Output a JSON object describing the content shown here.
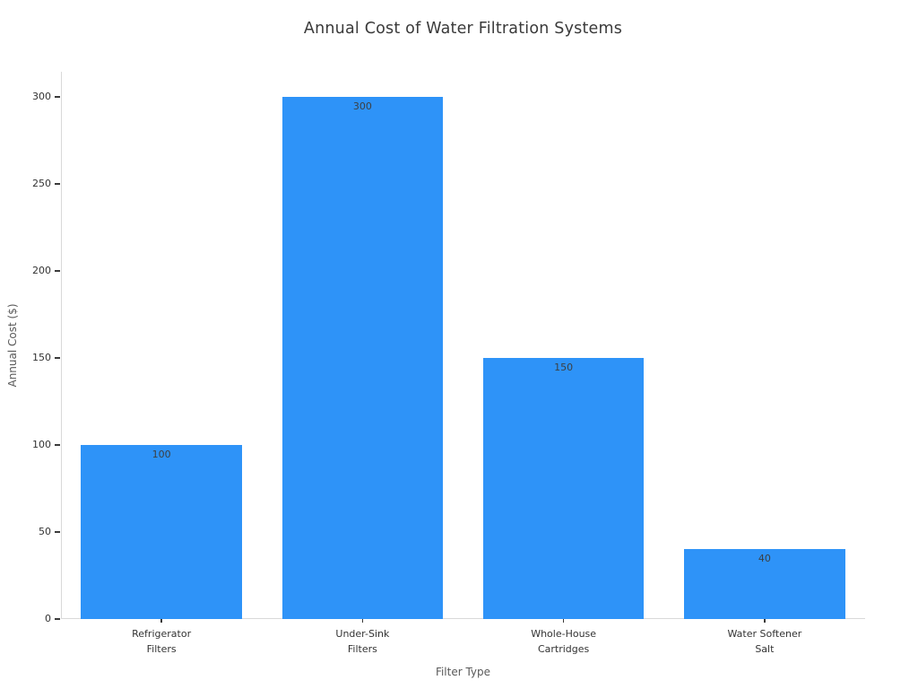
{
  "chart_data": {
    "type": "bar",
    "title": "Annual Cost of Water Filtration Systems",
    "xlabel": "Filter Type",
    "ylabel": "Annual Cost ($)",
    "categories": [
      "Refrigerator\nFilters",
      "Under-Sink\nFilters",
      "Whole-House\nCartridges",
      "Water Softener\nSalt"
    ],
    "values": [
      100,
      300,
      150,
      40
    ],
    "data_labels": [
      "100",
      "300",
      "150",
      "40"
    ],
    "yticks": [
      0,
      50,
      100,
      150,
      200,
      250,
      300
    ],
    "ylim": [
      0,
      314
    ],
    "bar_color": "#2e93f8",
    "bar_width_fraction": 0.8,
    "grid": false,
    "legend": null,
    "spine_color": "#d9d9d9",
    "tick_color": "#3a3a3a",
    "value_label_position": "inside-top"
  }
}
